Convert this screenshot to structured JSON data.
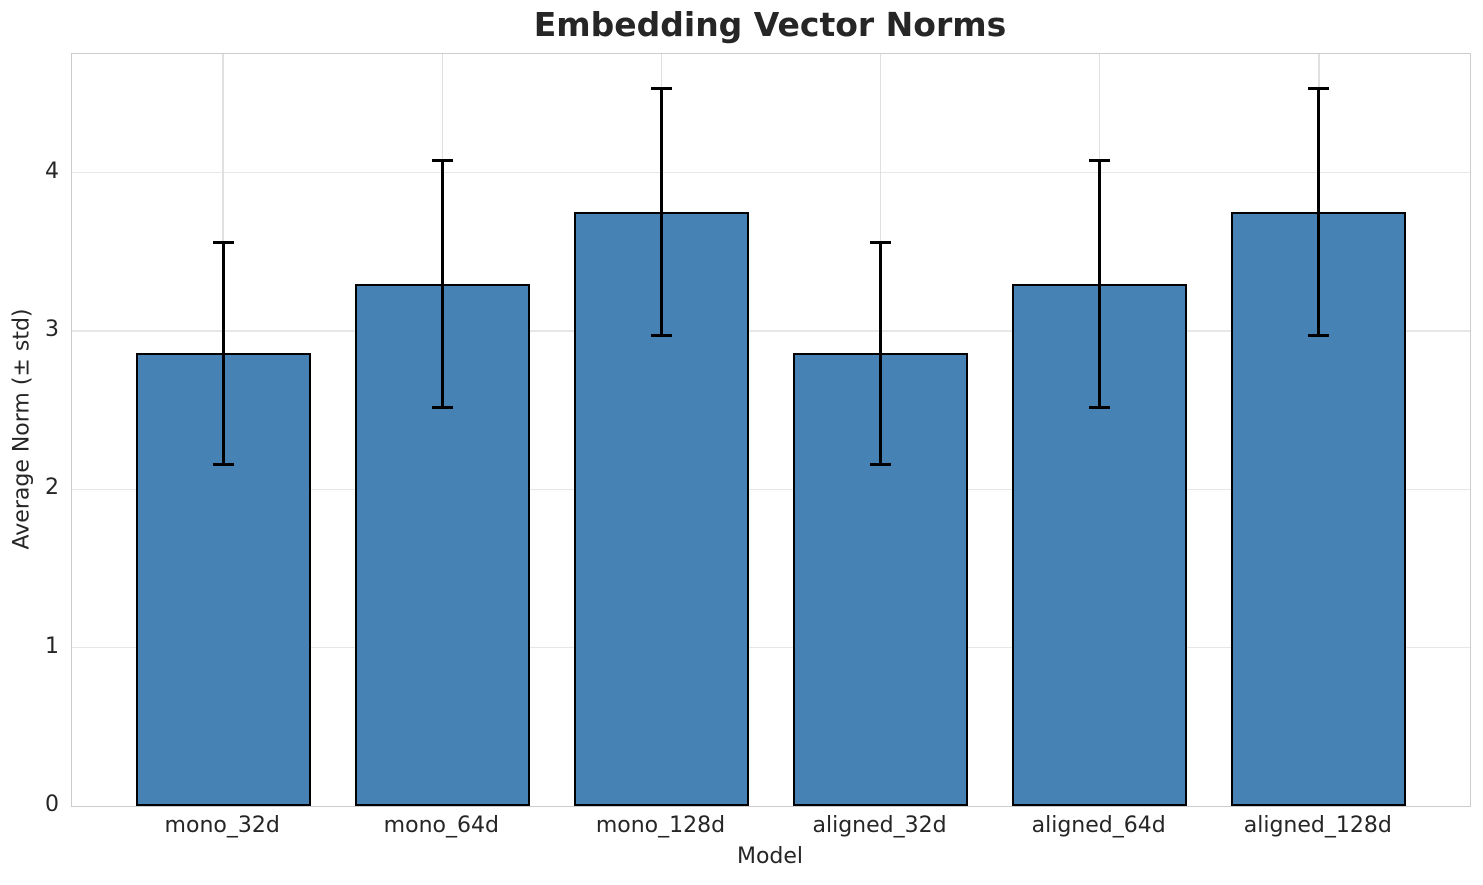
{
  "chart_data": {
    "type": "bar",
    "title": "Embedding Vector Norms",
    "xlabel": "Model",
    "ylabel": "Average Norm (± std)",
    "categories": [
      "mono_32d",
      "mono_64d",
      "mono_128d",
      "aligned_32d",
      "aligned_64d",
      "aligned_128d"
    ],
    "values": [
      2.86,
      3.3,
      3.75,
      2.86,
      3.3,
      3.75
    ],
    "errors": [
      0.7,
      0.78,
      0.78,
      0.7,
      0.78,
      0.78
    ],
    "yticks": [
      "0",
      "1",
      "2",
      "3",
      "4"
    ],
    "ylim": [
      0,
      4.75
    ],
    "xlim": [
      -0.69,
      5.69
    ],
    "bar_width": 0.8,
    "grid": true,
    "legend": null,
    "colors": {
      "bar_fill": "#4682b4",
      "bar_edge": "#000000",
      "error_bar": "#000000",
      "grid_line_h": "#e7e7e7",
      "grid_line_v": "#e0e0e0",
      "spine": "#cccccc",
      "text": "#262626",
      "background": "#ffffff"
    }
  }
}
